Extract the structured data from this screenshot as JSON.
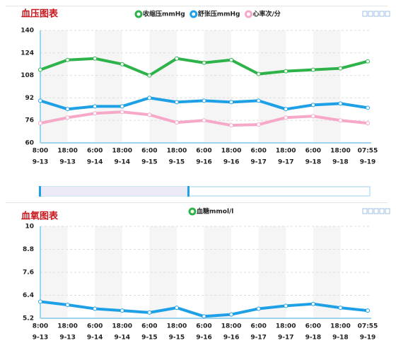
{
  "chart_data": [
    {
      "type": "line",
      "title": "血压图表",
      "categories": [
        [
          "8:00",
          "9-13"
        ],
        [
          "18:00",
          "9-13"
        ],
        [
          "6:00",
          "9-14"
        ],
        [
          "18:00",
          "9-14"
        ],
        [
          "6:00",
          "9-15"
        ],
        [
          "18:00",
          "9-15"
        ],
        [
          "6:00",
          "9-16"
        ],
        [
          "18:00",
          "9-16"
        ],
        [
          "6:00",
          "9-17"
        ],
        [
          "18:00",
          "9-17"
        ],
        [
          "6:00",
          "9-18"
        ],
        [
          "18:00",
          "9-18"
        ],
        [
          "07:55",
          "9-19"
        ]
      ],
      "series": [
        {
          "name": "收缩压mmHg",
          "color": "#2db34a",
          "values": [
            112,
            119,
            120,
            116,
            108,
            120,
            117,
            119,
            109,
            111,
            112,
            113,
            118
          ]
        },
        {
          "name": "舒张压mmHg",
          "color": "#1ea0e6",
          "values": [
            90,
            84,
            86,
            86,
            92,
            89,
            90,
            89,
            90,
            84,
            87,
            88,
            85
          ]
        },
        {
          "name": "心率次/分",
          "color": "#f7a8c8",
          "values": [
            74,
            78,
            81,
            82,
            80,
            74.5,
            76,
            72.5,
            73,
            78,
            79,
            76,
            74
          ]
        }
      ],
      "ylim": [
        60,
        140
      ],
      "yticks": [
        60,
        76,
        92,
        108,
        124,
        140
      ],
      "grid": true
    },
    {
      "type": "line",
      "title": "血氧图表",
      "categories": [
        [
          "8:00",
          "9-13"
        ],
        [
          "18:00",
          "9-13"
        ],
        [
          "6:00",
          "9-14"
        ],
        [
          "18:00",
          "9-14"
        ],
        [
          "6:00",
          "9-15"
        ],
        [
          "18:00",
          "9-15"
        ],
        [
          "6:00",
          "9-16"
        ],
        [
          "18:00",
          "9-16"
        ],
        [
          "6:00",
          "9-17"
        ],
        [
          "18:00",
          "9-17"
        ],
        [
          "6:00",
          "9-18"
        ],
        [
          "18:00",
          "9-18"
        ],
        [
          "07:55",
          "9-19"
        ]
      ],
      "legend_color": "#2db34a",
      "series": [
        {
          "name": "血糖mmol/l",
          "color": "#1ea0e6",
          "values": [
            6.07,
            5.9,
            5.7,
            5.6,
            5.5,
            5.75,
            5.3,
            5.4,
            5.7,
            5.85,
            5.95,
            5.75,
            5.6
          ]
        }
      ],
      "ylim": [
        5.2,
        10
      ],
      "yticks": [
        5.2,
        6.4,
        7.6,
        8.8,
        10
      ],
      "grid": true
    }
  ]
}
